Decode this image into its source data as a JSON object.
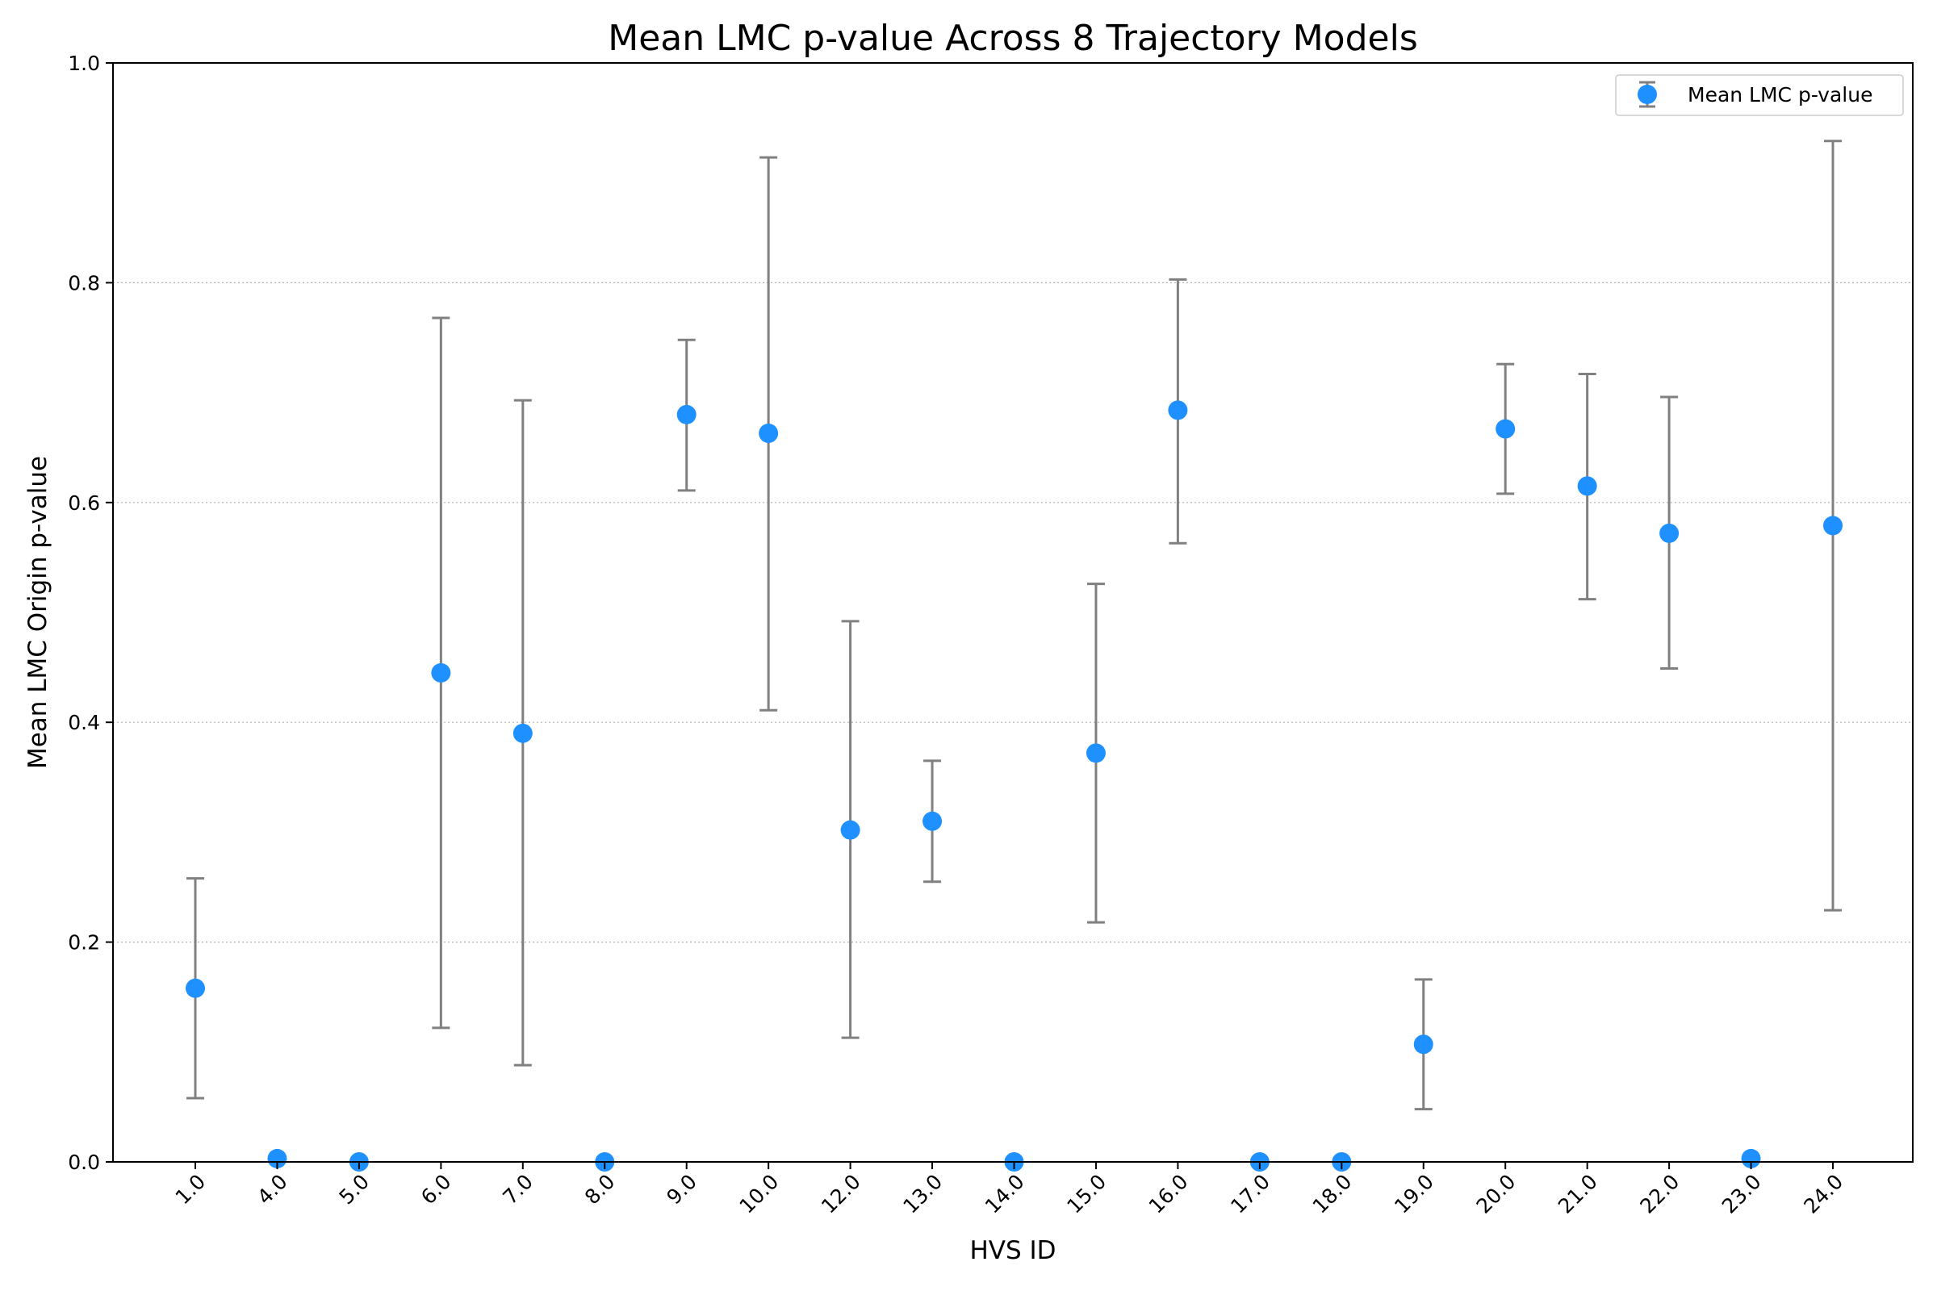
{
  "chart_data": {
    "type": "scatter",
    "title": "Mean LMC p-value Across 8 Trajectory Models",
    "xlabel": "HVS ID",
    "ylabel": "Mean LMC Origin p-value",
    "ylim": [
      0,
      1.0
    ],
    "y_ticks": [
      "0.0",
      "0.2",
      "0.4",
      "0.6",
      "0.8",
      "1.0"
    ],
    "grid": "horizontal dotted",
    "legend_position": "top-right",
    "categories": [
      "1.0",
      "4.0",
      "5.0",
      "6.0",
      "7.0",
      "8.0",
      "9.0",
      "10.0",
      "12.0",
      "13.0",
      "14.0",
      "15.0",
      "16.0",
      "17.0",
      "18.0",
      "19.0",
      "20.0",
      "21.0",
      "22.0",
      "23.0",
      "24.0"
    ],
    "series": [
      {
        "name": "Mean LMC p-value",
        "color": "#1e90ff",
        "errorbar_color": "#808080",
        "values": [
          0.158,
          0.003,
          0.0,
          0.445,
          0.39,
          0.0,
          0.68,
          0.663,
          0.302,
          0.31,
          0.0,
          0.372,
          0.684,
          0.0,
          0.0,
          0.107,
          0.667,
          0.615,
          0.572,
          0.003,
          0.579
        ],
        "err_low": [
          0.058,
          0.003,
          0.0,
          0.122,
          0.088,
          0.0,
          0.611,
          0.411,
          0.113,
          0.255,
          0.0,
          0.218,
          0.563,
          0.0,
          0.0,
          0.048,
          0.608,
          0.512,
          0.449,
          0.003,
          0.229
        ],
        "err_high": [
          0.258,
          0.003,
          0.0,
          0.768,
          0.693,
          0.0,
          0.748,
          0.914,
          0.492,
          0.365,
          0.0,
          0.526,
          0.803,
          0.0,
          0.0,
          0.166,
          0.726,
          0.717,
          0.696,
          0.003,
          0.929
        ]
      }
    ]
  }
}
